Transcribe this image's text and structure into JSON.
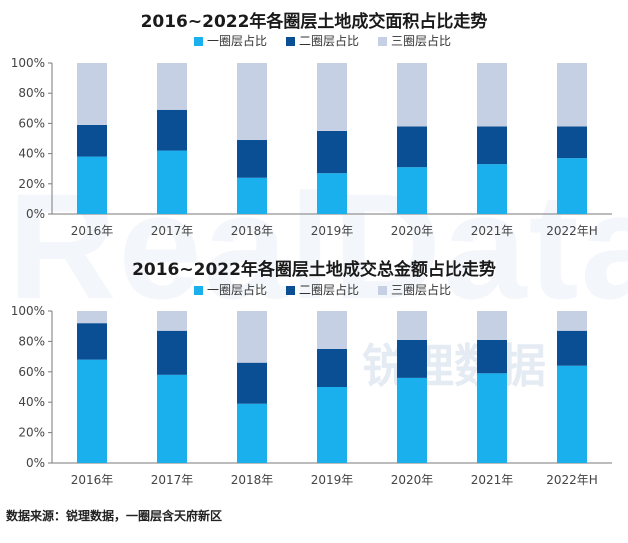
{
  "chart_data": [
    {
      "type": "bar",
      "stacked": true,
      "title": "2016~2022年各圈层土地成交面积占比走势",
      "categories": [
        "2016年",
        "2017年",
        "2018年",
        "2019年",
        "2020年",
        "2021年",
        "2022年H"
      ],
      "yticks": [
        "0%",
        "20%",
        "40%",
        "60%",
        "80%",
        "100%"
      ],
      "ylim": [
        0,
        100
      ],
      "grid": false,
      "legend_position": "top-center",
      "series": [
        {
          "name": "一圈层占比",
          "color": "#1AB0EE",
          "values": [
            38,
            42,
            24,
            27,
            31,
            33,
            37
          ]
        },
        {
          "name": "二圈层占比",
          "color": "#0A4F94",
          "values": [
            21,
            27,
            25,
            28,
            27,
            25,
            21
          ]
        },
        {
          "name": "三圈层占比",
          "color": "#C6D0E4",
          "values": [
            41,
            31,
            51,
            45,
            42,
            42,
            42
          ]
        }
      ]
    },
    {
      "type": "bar",
      "stacked": true,
      "title": "2016~2022年各圈层土地成交总金额占比走势",
      "categories": [
        "2016年",
        "2017年",
        "2018年",
        "2019年",
        "2020年",
        "2021年",
        "2022年H"
      ],
      "yticks": [
        "0%",
        "20%",
        "40%",
        "60%",
        "80%",
        "100%"
      ],
      "ylim": [
        0,
        100
      ],
      "grid": false,
      "legend_position": "top-center",
      "series": [
        {
          "name": "一圈层占比",
          "color": "#1AB0EE",
          "values": [
            68,
            58,
            39,
            50,
            56,
            59,
            64
          ]
        },
        {
          "name": "二圈层占比",
          "color": "#0A4F94",
          "values": [
            24,
            29,
            27,
            25,
            25,
            22,
            23
          ]
        },
        {
          "name": "三圈层占比",
          "color": "#C6D0E4",
          "values": [
            8,
            13,
            34,
            25,
            19,
            19,
            13
          ]
        }
      ]
    }
  ],
  "watermark": {
    "en": "RealData",
    "cn": "锐理数据"
  },
  "footer": {
    "source": "数据来源：锐理数据，一圈层含天府新区"
  }
}
